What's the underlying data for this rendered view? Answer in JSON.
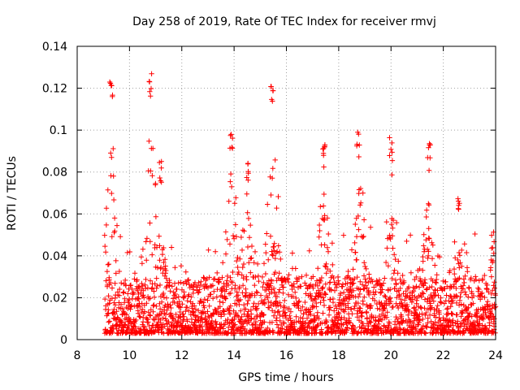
{
  "chart_data": {
    "type": "scatter",
    "title": "Day 258 of 2019, Rate Of TEC Index for receiver rmvj",
    "xlabel": "GPS time / hours",
    "ylabel": "ROTI / TECUs",
    "xlim": [
      8,
      24
    ],
    "ylim": [
      0,
      0.14
    ],
    "x_ticks": [
      8,
      10,
      12,
      14,
      16,
      18,
      20,
      22,
      24
    ],
    "x_tick_labels": [
      "8",
      "10",
      "12",
      "14",
      "16",
      "18",
      "20",
      "22",
      "24"
    ],
    "y_ticks": [
      0,
      0.02,
      0.04,
      0.06,
      0.08,
      0.1,
      0.12,
      0.14
    ],
    "y_tick_labels": [
      "0",
      "0.02",
      "0.04",
      "0.06",
      "0.08",
      "0.1",
      "0.12",
      "0.14"
    ],
    "grid": true,
    "marker": "+",
    "color": "#ff0000",
    "series": [
      {
        "name": "ROTI",
        "x_range": [
          9.05,
          24.0
        ],
        "typical_range": [
          0.003,
          0.03
        ],
        "bursts": [
          {
            "x": 9.3,
            "peak": 0.126
          },
          {
            "x": 10.8,
            "peak": 0.127
          },
          {
            "x": 11.2,
            "peak": 0.086
          },
          {
            "x": 13.9,
            "peak": 0.1
          },
          {
            "x": 14.5,
            "peak": 0.086
          },
          {
            "x": 15.45,
            "peak": 0.124
          },
          {
            "x": 17.45,
            "peak": 0.098
          },
          {
            "x": 18.75,
            "peak": 0.099
          },
          {
            "x": 20.0,
            "peak": 0.097
          },
          {
            "x": 21.45,
            "peak": 0.095
          },
          {
            "x": 22.6,
            "peak": 0.071
          },
          {
            "x": 23.9,
            "peak": 0.052
          }
        ]
      }
    ]
  }
}
